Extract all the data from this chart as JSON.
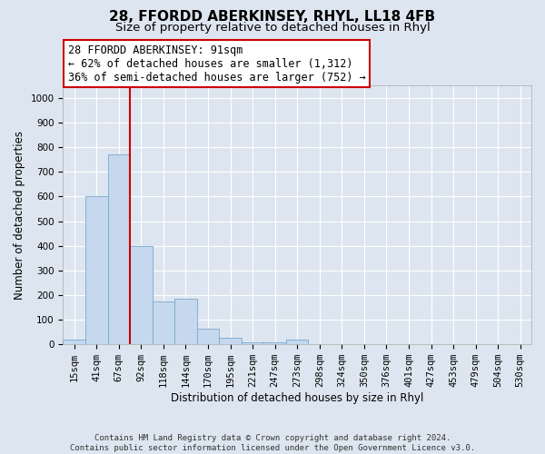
{
  "title": "28, FFORDD ABERKINSEY, RHYL, LL18 4FB",
  "subtitle": "Size of property relative to detached houses in Rhyl",
  "xlabel": "Distribution of detached houses by size in Rhyl",
  "ylabel": "Number of detached properties",
  "footer_line1": "Contains HM Land Registry data © Crown copyright and database right 2024.",
  "footer_line2": "Contains public sector information licensed under the Open Government Licence v3.0.",
  "bin_labels": [
    "15sqm",
    "41sqm",
    "67sqm",
    "92sqm",
    "118sqm",
    "144sqm",
    "170sqm",
    "195sqm",
    "221sqm",
    "247sqm",
    "273sqm",
    "298sqm",
    "324sqm",
    "350sqm",
    "376sqm",
    "401sqm",
    "427sqm",
    "453sqm",
    "479sqm",
    "504sqm",
    "530sqm"
  ],
  "bar_values": [
    20,
    600,
    770,
    400,
    175,
    185,
    65,
    25,
    10,
    10,
    20,
    0,
    0,
    0,
    0,
    0,
    0,
    0,
    0,
    0,
    0
  ],
  "bar_color": "#c5d8ee",
  "bar_edge_color": "#7aa8cc",
  "annotation_text": "28 FFORDD ABERKINSEY: 91sqm\n← 62% of detached houses are smaller (1,312)\n36% of semi-detached houses are larger (752) →",
  "annotation_box_facecolor": "white",
  "annotation_box_edgecolor": "#cc0000",
  "vline_x": 2.5,
  "vline_color": "#cc0000",
  "ylim": [
    0,
    1050
  ],
  "yticks": [
    0,
    100,
    200,
    300,
    400,
    500,
    600,
    700,
    800,
    900,
    1000
  ],
  "bg_color": "#dde6f0",
  "grid_color": "#ffffff",
  "title_fontsize": 11,
  "subtitle_fontsize": 9.5,
  "axis_label_fontsize": 8.5,
  "tick_fontsize": 7.5,
  "annot_fontsize": 8.5
}
